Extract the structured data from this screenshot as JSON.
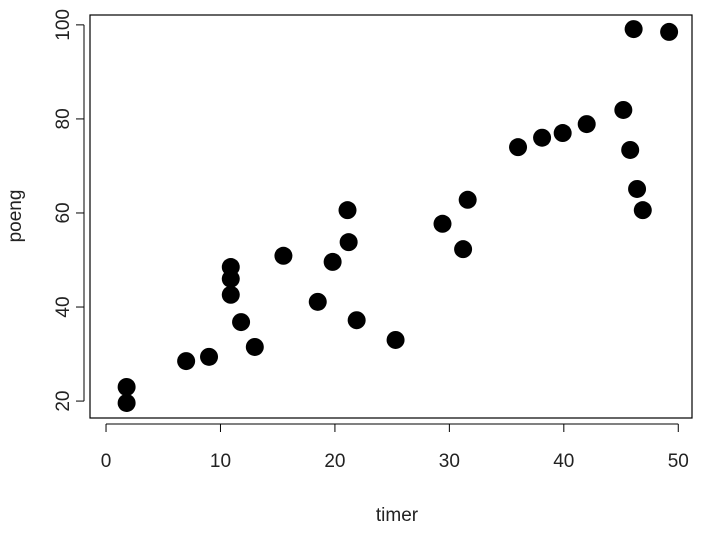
{
  "chart_data": {
    "type": "scatter",
    "x_label": "timer",
    "y_label": "poeng",
    "x": [
      1.8,
      1.8,
      7.0,
      9.0,
      10.9,
      10.9,
      10.9,
      11.8,
      13.0,
      15.5,
      18.5,
      19.8,
      21.1,
      21.2,
      21.9,
      25.3,
      29.4,
      31.2,
      31.6,
      36.0,
      38.1,
      39.9,
      42.0,
      45.2,
      45.8,
      46.1,
      46.4,
      46.9,
      49.2
    ],
    "values": [
      23.0,
      19.6,
      28.5,
      29.4,
      48.5,
      46.0,
      42.6,
      36.8,
      31.5,
      50.9,
      41.1,
      49.6,
      60.6,
      53.8,
      37.2,
      33.0,
      57.7,
      52.3,
      62.8,
      74.0,
      76.0,
      77.0,
      78.9,
      81.9,
      73.4,
      99.1,
      65.1,
      60.6,
      98.5
    ],
    "color": "#000000",
    "xlim": [
      -1.4,
      51.2
    ],
    "ylim": [
      16.4,
      102.1
    ],
    "xticks": [
      0,
      10,
      20,
      30,
      40,
      50
    ],
    "yticks": [
      20,
      40,
      60,
      80,
      100
    ]
  }
}
